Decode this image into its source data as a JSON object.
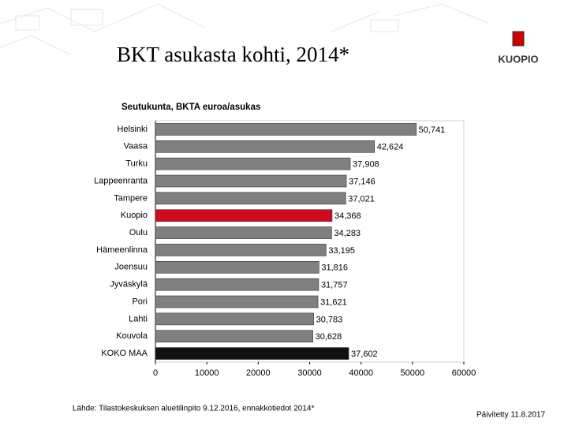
{
  "chart_data": {
    "type": "hbar",
    "title": "BKT asukasta kohti, 2014*",
    "subtitle": "Seutukunta, BKTA euroa/asukas",
    "categories": [
      "Helsinki",
      "Vaasa",
      "Turku",
      "Lappeenranta",
      "Tampere",
      "Kuopio",
      "Oulu",
      "Hämeenlinna",
      "Joensuu",
      "Jyväskylä",
      "Pori",
      "Lahti",
      "Kouvola",
      "KOKO MAA"
    ],
    "values": [
      50741,
      42624,
      37908,
      37146,
      37021,
      34368,
      34283,
      33195,
      31816,
      31757,
      31621,
      30783,
      30628,
      37602
    ],
    "value_labels": [
      "50,741",
      "42,624",
      "37,908",
      "37,146",
      "37,021",
      "34,368",
      "34,283",
      "33,195",
      "31,816",
      "31,757",
      "31,621",
      "30,783",
      "30,628",
      "37,602"
    ],
    "colors": [
      "#808080",
      "#808080",
      "#808080",
      "#808080",
      "#808080",
      "#d00a1e",
      "#808080",
      "#808080",
      "#808080",
      "#808080",
      "#808080",
      "#808080",
      "#808080",
      "#111111"
    ],
    "xlim": [
      0,
      60000
    ],
    "xticks": [
      0,
      10000,
      20000,
      30000,
      40000,
      50000,
      60000
    ],
    "source": "Lähde: Tilastokeskuksen aluetilinpito 9.12.2016, ennakkotiedot 2014*",
    "updated": "Päivitetty 11.8.2017",
    "logo_text": "KUOPIO"
  }
}
